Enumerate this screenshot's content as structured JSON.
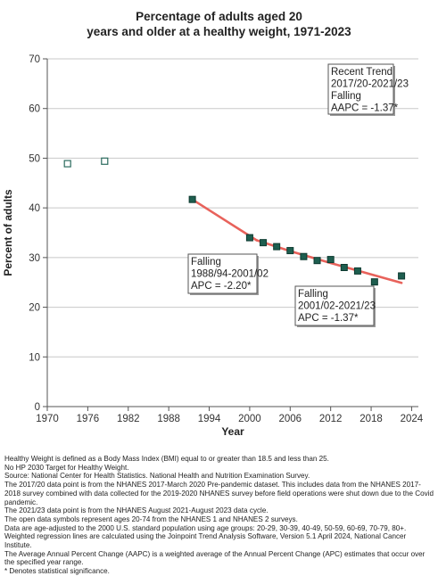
{
  "chart_data": {
    "type": "scatter",
    "title_lines": [
      "Percentage of adults aged 20",
      "years and older at a healthy weight, 1971-2023"
    ],
    "xlabel": "Year",
    "ylabel": "Percent of adults",
    "xlim": [
      1970,
      2025
    ],
    "ylim": [
      0,
      70
    ],
    "xticks": [
      1970,
      1976,
      1982,
      1988,
      1994,
      2000,
      2006,
      2012,
      2018,
      2024
    ],
    "yticks": [
      0,
      10,
      20,
      30,
      40,
      50,
      60,
      70
    ],
    "grid": "horizontal",
    "colors": {
      "point_fill": "#1e5e4f",
      "point_edge": "#0d3a30",
      "open_edge": "#2b6b5e",
      "trend": "#e8625b",
      "grid": "#c8c8c8",
      "plot_bg": "#ffffff"
    },
    "series": [
      {
        "marker": "open-square",
        "points": [
          {
            "x": 1973,
            "y": 48.9
          },
          {
            "x": 1978.5,
            "y": 49.4
          }
        ]
      },
      {
        "marker": "filled-square",
        "points": [
          {
            "x": 1991.5,
            "y": 41.7
          },
          {
            "x": 2000,
            "y": 34.0
          },
          {
            "x": 2002,
            "y": 33.0
          },
          {
            "x": 2004,
            "y": 32.2
          },
          {
            "x": 2006,
            "y": 31.4
          },
          {
            "x": 2008,
            "y": 30.2
          },
          {
            "x": 2010,
            "y": 29.4
          },
          {
            "x": 2012,
            "y": 29.6
          },
          {
            "x": 2014,
            "y": 28.0
          },
          {
            "x": 2016,
            "y": 27.3
          },
          {
            "x": 2018.5,
            "y": 25.1
          },
          {
            "x": 2022.5,
            "y": 26.3
          }
        ]
      }
    ],
    "trend_lines": [
      {
        "segment": "1988/94-2001/02",
        "points": [
          {
            "x": 1991.5,
            "y": 41.7
          },
          {
            "x": 2001,
            "y": 33.5
          }
        ]
      },
      {
        "segment": "2001/02-2021/23",
        "points": [
          {
            "x": 2001,
            "y": 33.5
          },
          {
            "x": 2006,
            "y": 31.3
          },
          {
            "x": 2012,
            "y": 28.9
          },
          {
            "x": 2018,
            "y": 26.6
          },
          {
            "x": 2022.5,
            "y": 24.9
          }
        ]
      }
    ],
    "annotations": [
      {
        "id": "recent",
        "position": "top-right",
        "lines": [
          "Recent Trend",
          "2017/20-2021/23",
          "Falling",
          "AAPC = -1.37*"
        ]
      },
      {
        "id": "seg1",
        "position": "middle",
        "lines": [
          "Falling",
          "1988/94-2001/02",
          "APC = -2.20*"
        ]
      },
      {
        "id": "seg2",
        "position": "lower-right",
        "lines": [
          "Falling",
          "2001/02-2021/23",
          "APC = -1.37*"
        ]
      }
    ]
  },
  "footnotes": [
    "Healthy Weight is defined as a Body Mass Index (BMI) equal to or greater than 18.5 and less than 25.",
    "No HP 2030 Target for Healthy Weight.",
    "Source: National Center for Health Statistics. National Health and Nutrition Examination Survey.",
    "The 2017/20 data point is from the NHANES 2017-March 2020 Pre-pandemic dataset. This includes data from the NHANES 2017-2018 survey combined with data collected for the 2019-2020 NHANES survey before field operations were shut down due to the Covid pandemic.",
    "The 2021/23 data point is from the NHANES August 2021-August 2023 data cycle.",
    "The open data symbols represent ages 20-74 from the NHANES 1 and NHANES 2 surveys.",
    "Data are age-adjusted to the 2000 U.S. standard population using age groups: 20-29, 30-39, 40-49, 50-59, 60-69, 70-79, 80+.",
    "Weighted regression lines are calculated using the Joinpoint Trend Analysis Software, Version 5.1 April 2024, National Cancer Institute.",
    "The Average Annual Percent Change (AAPC) is a weighted average of the Annual Percent Change (APC) estimates that occur over the specified year range.",
    "* Denotes statistical significance."
  ]
}
